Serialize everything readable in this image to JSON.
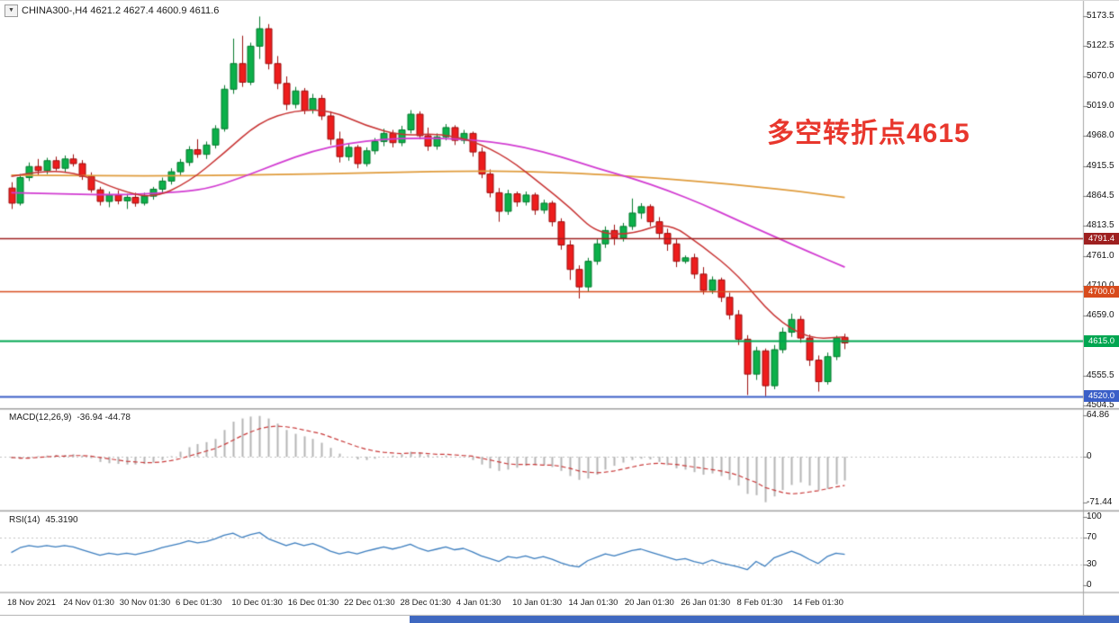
{
  "header": {
    "collapse_icon": "▼",
    "symbol_info": "CHINA300-,H4 4621.2 4627.4 4600.9 4611.6"
  },
  "annotation": {
    "text": "多空转折点4615",
    "color": "#e8372d"
  },
  "bottom_bar": {
    "blue_color": "#3f68c0"
  },
  "chart_data": {
    "type": "candlestick",
    "title": "CHINA300-,H4",
    "symbol": "CHINA300-",
    "timeframe": "H4",
    "current_ohlc": {
      "open": 4621.2,
      "high": 4627.4,
      "low": 4600.9,
      "close": 4611.6
    },
    "price_range": [
      4501,
      5187.5
    ],
    "price_axis_ticks": [
      "5173.5",
      "5122.5",
      "5070.0",
      "5019.0",
      "4968.0",
      "4915.5",
      "4864.5",
      "4813.5",
      "4761.0",
      "4710.0",
      "4659.0",
      "4555.5",
      "4504.5"
    ],
    "time_labels": [
      "18 Nov 2021",
      "24 Nov 01:30",
      "30 Nov 01:30",
      "6 Dec 01:30",
      "10 Dec 01:30",
      "16 Dec 01:30",
      "22 Dec 01:30",
      "28 Dec 01:30",
      "4 Jan 01:30",
      "10 Jan 01:30",
      "14 Jan 01:30",
      "20 Jan 01:30",
      "26 Jan 01:30",
      "8 Feb 01:30",
      "14 Feb 01:30"
    ],
    "hlines": [
      {
        "value": 4791.4,
        "label": "4791.4",
        "color": "#9e2020",
        "width": 1.6
      },
      {
        "value": 4700.0,
        "label": "4700.0",
        "color": "#d84b1c",
        "width": 1.6
      },
      {
        "value": 4615.0,
        "label": "4615.0",
        "color": "#00a651",
        "width": 2
      },
      {
        "value": 4520.0,
        "label": "4520.0",
        "color": "#3a5fc8",
        "width": 2
      }
    ],
    "colors": {
      "up_fill": "#0cb04a",
      "up_stroke": "#067a2e",
      "down_fill": "#ee1d1d",
      "down_stroke": "#9c0f0f"
    },
    "candles": [
      [
        4878,
        4888,
        4842,
        4852
      ],
      [
        4852,
        4902,
        4848,
        4896
      ],
      [
        4896,
        4922,
        4890,
        4915
      ],
      [
        4915,
        4928,
        4900,
        4908
      ],
      [
        4908,
        4930,
        4902,
        4925
      ],
      [
        4925,
        4932,
        4908,
        4912
      ],
      [
        4912,
        4934,
        4906,
        4928
      ],
      [
        4928,
        4936,
        4915,
        4920
      ],
      [
        4920,
        4926,
        4892,
        4898
      ],
      [
        4898,
        4905,
        4870,
        4875
      ],
      [
        4875,
        4880,
        4848,
        4855
      ],
      [
        4855,
        4872,
        4845,
        4866
      ],
      [
        4866,
        4874,
        4850,
        4856
      ],
      [
        4856,
        4868,
        4842,
        4862
      ],
      [
        4862,
        4870,
        4846,
        4852
      ],
      [
        4852,
        4870,
        4848,
        4864
      ],
      [
        4864,
        4880,
        4858,
        4876
      ],
      [
        4876,
        4896,
        4870,
        4890
      ],
      [
        4890,
        4912,
        4884,
        4906
      ],
      [
        4906,
        4928,
        4900,
        4922
      ],
      [
        4922,
        4950,
        4916,
        4944
      ],
      [
        4944,
        4962,
        4930,
        4936
      ],
      [
        4936,
        4958,
        4928,
        4952
      ],
      [
        4952,
        4986,
        4946,
        4980
      ],
      [
        4980,
        5055,
        4975,
        5048
      ],
      [
        5048,
        5135,
        5040,
        5092
      ],
      [
        5092,
        5140,
        5052,
        5060
      ],
      [
        5060,
        5128,
        5055,
        5122
      ],
      [
        5122,
        5173,
        5100,
        5152
      ],
      [
        5152,
        5160,
        5082,
        5092
      ],
      [
        5092,
        5105,
        5048,
        5058
      ],
      [
        5058,
        5070,
        5012,
        5022
      ],
      [
        5022,
        5052,
        5015,
        5045
      ],
      [
        5045,
        5050,
        5005,
        5012
      ],
      [
        5012,
        5040,
        5006,
        5032
      ],
      [
        5032,
        5038,
        4995,
        5002
      ],
      [
        5002,
        5010,
        4952,
        4962
      ],
      [
        4962,
        4975,
        4922,
        4932
      ],
      [
        4932,
        4955,
        4925,
        4948
      ],
      [
        4948,
        4952,
        4912,
        4920
      ],
      [
        4920,
        4948,
        4915,
        4942
      ],
      [
        4942,
        4964,
        4936,
        4958
      ],
      [
        4958,
        4980,
        4950,
        4972
      ],
      [
        4972,
        4978,
        4948,
        4956
      ],
      [
        4956,
        4985,
        4950,
        4978
      ],
      [
        4978,
        5012,
        4972,
        5005
      ],
      [
        5005,
        5010,
        4962,
        4968
      ],
      [
        4968,
        4982,
        4942,
        4950
      ],
      [
        4950,
        4972,
        4944,
        4966
      ],
      [
        4966,
        4988,
        4960,
        4982
      ],
      [
        4982,
        4986,
        4952,
        4960
      ],
      [
        4960,
        4978,
        4954,
        4972
      ],
      [
        4972,
        4975,
        4932,
        4940
      ],
      [
        4940,
        4948,
        4895,
        4902
      ],
      [
        4902,
        4910,
        4862,
        4870
      ],
      [
        4870,
        4878,
        4820,
        4838
      ],
      [
        4838,
        4875,
        4832,
        4868
      ],
      [
        4868,
        4872,
        4846,
        4854
      ],
      [
        4854,
        4872,
        4848,
        4866
      ],
      [
        4866,
        4870,
        4832,
        4840
      ],
      [
        4840,
        4858,
        4834,
        4852
      ],
      [
        4852,
        4856,
        4812,
        4820
      ],
      [
        4820,
        4826,
        4772,
        4780
      ],
      [
        4780,
        4788,
        4720,
        4738
      ],
      [
        4738,
        4745,
        4688,
        4708
      ],
      [
        4708,
        4758,
        4700,
        4752
      ],
      [
        4752,
        4790,
        4746,
        4782
      ],
      [
        4782,
        4812,
        4775,
        4805
      ],
      [
        4805,
        4815,
        4780,
        4792
      ],
      [
        4792,
        4818,
        4786,
        4812
      ],
      [
        4812,
        4860,
        4806,
        4835
      ],
      [
        4835,
        4852,
        4825,
        4846
      ],
      [
        4846,
        4850,
        4812,
        4820
      ],
      [
        4820,
        4828,
        4790,
        4800
      ],
      [
        4800,
        4808,
        4770,
        4782
      ],
      [
        4782,
        4790,
        4742,
        4752
      ],
      [
        4752,
        4762,
        4748,
        4758
      ],
      [
        4758,
        4765,
        4722,
        4730
      ],
      [
        4730,
        4742,
        4695,
        4702
      ],
      [
        4702,
        4726,
        4696,
        4720
      ],
      [
        4720,
        4724,
        4682,
        4690
      ],
      [
        4690,
        4698,
        4652,
        4660
      ],
      [
        4660,
        4668,
        4608,
        4618
      ],
      [
        4618,
        4625,
        4522,
        4558
      ],
      [
        4558,
        4605,
        4548,
        4598
      ],
      [
        4598,
        4602,
        4520,
        4538
      ],
      [
        4538,
        4608,
        4532,
        4600
      ],
      [
        4600,
        4638,
        4594,
        4630
      ],
      [
        4630,
        4662,
        4622,
        4652
      ],
      [
        4652,
        4658,
        4612,
        4620
      ],
      [
        4620,
        4626,
        4572,
        4582
      ],
      [
        4582,
        4590,
        4528,
        4545
      ],
      [
        4545,
        4595,
        4540,
        4588
      ],
      [
        4588,
        4624,
        4582,
        4620
      ],
      [
        4621.2,
        4627.4,
        4600.9,
        4611.6
      ]
    ],
    "moving_averages": [
      {
        "name": "ma-slow-orange",
        "color": "#e09c3c",
        "width": 1.8,
        "points": [
          [
            0,
            4900
          ],
          [
            10,
            4899
          ],
          [
            20,
            4899
          ],
          [
            30,
            4901
          ],
          [
            40,
            4904
          ],
          [
            50,
            4907
          ],
          [
            58,
            4907
          ],
          [
            66,
            4902
          ],
          [
            72,
            4896
          ],
          [
            78,
            4889
          ],
          [
            84,
            4880
          ],
          [
            89,
            4872
          ],
          [
            94,
            4862
          ]
        ]
      },
      {
        "name": "ma-mid-magenta",
        "color": "#d23cd2",
        "width": 1.8,
        "points": [
          [
            0,
            4870
          ],
          [
            6,
            4868
          ],
          [
            12,
            4866
          ],
          [
            18,
            4870
          ],
          [
            22,
            4876
          ],
          [
            26,
            4896
          ],
          [
            30,
            4920
          ],
          [
            34,
            4942
          ],
          [
            38,
            4955
          ],
          [
            42,
            4962
          ],
          [
            46,
            4964
          ],
          [
            50,
            4963
          ],
          [
            54,
            4958
          ],
          [
            58,
            4948
          ],
          [
            62,
            4932
          ],
          [
            66,
            4912
          ],
          [
            70,
            4895
          ],
          [
            74,
            4874
          ],
          [
            78,
            4850
          ],
          [
            82,
            4822
          ],
          [
            86,
            4795
          ],
          [
            90,
            4768
          ],
          [
            94,
            4742
          ]
        ]
      },
      {
        "name": "ma-fast-red",
        "color": "#c83232",
        "width": 1.5,
        "points": [
          [
            0,
            4898
          ],
          [
            4,
            4909
          ],
          [
            8,
            4902
          ],
          [
            12,
            4875
          ],
          [
            16,
            4860
          ],
          [
            20,
            4888
          ],
          [
            24,
            4938
          ],
          [
            28,
            4992
          ],
          [
            32,
            5012
          ],
          [
            36,
            5012
          ],
          [
            40,
            4985
          ],
          [
            44,
            4968
          ],
          [
            48,
            4972
          ],
          [
            52,
            4960
          ],
          [
            56,
            4930
          ],
          [
            60,
            4882
          ],
          [
            63,
            4845
          ],
          [
            66,
            4800
          ],
          [
            70,
            4798
          ],
          [
            74,
            4820
          ],
          [
            78,
            4778
          ],
          [
            82,
            4728
          ],
          [
            86,
            4655
          ],
          [
            90,
            4618
          ],
          [
            94,
            4622
          ]
        ]
      }
    ],
    "macd": {
      "label": "MACD(12,26,9)",
      "values_label": "-36.94 -44.78",
      "axis_ticks": [
        "64.86",
        "0",
        "-71.44"
      ],
      "hist_color": "#b5b5b5",
      "signal_color": "#c93a3a",
      "histogram": [
        -2,
        -3,
        -1,
        1,
        2,
        3,
        3,
        4,
        2,
        -2,
        -8,
        -10,
        -11,
        -12,
        -12,
        -11,
        -9,
        -5,
        1,
        8,
        15,
        20,
        23,
        28,
        42,
        55,
        60,
        63,
        64,
        60,
        52,
        42,
        36,
        32,
        28,
        22,
        14,
        5,
        0,
        -4,
        -5,
        -3,
        0,
        2,
        4,
        8,
        7,
        3,
        1,
        2,
        0,
        -1,
        -5,
        -12,
        -18,
        -22,
        -20,
        -17,
        -14,
        -13,
        -13,
        -16,
        -22,
        -30,
        -36,
        -34,
        -28,
        -20,
        -14,
        -9,
        -5,
        -3,
        -4,
        -8,
        -13,
        -18,
        -20,
        -24,
        -28,
        -26,
        -30,
        -36,
        -45,
        -58,
        -60,
        -71,
        -62,
        -52,
        -44,
        -40,
        -45,
        -52,
        -50,
        -43,
        -36.94
      ],
      "signal": [
        -1,
        -2,
        -2,
        -1,
        0,
        1,
        1,
        2,
        2,
        1,
        -1,
        -3,
        -5,
        -7,
        -8,
        -9,
        -9,
        -8,
        -6,
        -3,
        1,
        5,
        9,
        13,
        19,
        26,
        33,
        39,
        44,
        47,
        48,
        47,
        45,
        42,
        39,
        36,
        31,
        26,
        21,
        16,
        12,
        9,
        7,
        6,
        5,
        6,
        6,
        5,
        4,
        4,
        3,
        2,
        1,
        -2,
        -5,
        -8,
        -11,
        -12,
        -12,
        -12,
        -13,
        -13,
        -15,
        -18,
        -22,
        -24,
        -25,
        -24,
        -22,
        -19,
        -16,
        -13,
        -11,
        -10,
        -11,
        -12,
        -14,
        -16,
        -18,
        -20,
        -22,
        -25,
        -29,
        -35,
        -40,
        -48,
        -52,
        -56,
        -58,
        -57,
        -55,
        -53,
        -50,
        -47,
        -44.78
      ]
    },
    "rsi": {
      "label": "RSI(14)",
      "value_label": "45.3190",
      "axis_ticks": [
        "100",
        "70",
        "30",
        "0"
      ],
      "levels": [
        70,
        30
      ],
      "color": "#3c7ebf",
      "values": [
        48,
        55,
        58,
        56,
        58,
        56,
        58,
        56,
        52,
        48,
        44,
        47,
        45,
        47,
        45,
        48,
        51,
        55,
        58,
        61,
        65,
        62,
        64,
        68,
        73,
        76,
        70,
        74,
        77,
        68,
        63,
        58,
        62,
        58,
        61,
        56,
        50,
        46,
        49,
        46,
        50,
        53,
        56,
        53,
        56,
        60,
        54,
        50,
        53,
        56,
        52,
        54,
        49,
        43,
        39,
        35,
        42,
        40,
        43,
        39,
        42,
        38,
        33,
        29,
        27,
        36,
        41,
        46,
        43,
        47,
        51,
        53,
        49,
        45,
        41,
        37,
        39,
        35,
        32,
        37,
        33,
        30,
        27,
        23,
        35,
        28,
        40,
        45,
        50,
        45,
        38,
        32,
        42,
        47,
        45.32
      ]
    }
  }
}
